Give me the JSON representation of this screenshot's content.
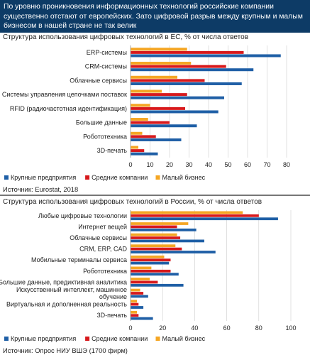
{
  "headline": "По уровню проникновения информационных технологий российские компании существенно отстают от европейских. Зато цифровой разрыв между крупным и малым бизнесом в нашей стране не так велик",
  "colors": {
    "large": "#1f5fa6",
    "medium": "#d7191c",
    "small": "#f5a623",
    "headline_bg": "#0d3b66",
    "grid": "#cccccc"
  },
  "chart_data": [
    {
      "type": "bar",
      "orientation": "horizontal",
      "title": "Структура использования цифровых технологий в ЕС, % от числа ответов",
      "categories": [
        "ERP-системы",
        "CRM-системы",
        "Облачные сервисы",
        "Системы управления цепочками поставок",
        "RFID (радиочастотная идентификация)",
        "Большие данные",
        "Робототехника",
        "3D-печать"
      ],
      "series": [
        {
          "name": "Крупные предприятия",
          "color": "#1f5fa6",
          "values": [
            77,
            63,
            57,
            48,
            45,
            34,
            26,
            14
          ]
        },
        {
          "name": "Средние компании",
          "color": "#d7191c",
          "values": [
            58,
            49,
            38,
            29,
            28,
            20,
            13,
            7
          ]
        },
        {
          "name": "Малый бизнес",
          "color": "#f5a623",
          "values": [
            29,
            31,
            24,
            16,
            10,
            9,
            6,
            4
          ]
        }
      ],
      "xlim": [
        0,
        80
      ],
      "ticks": [
        "0",
        "10",
        "20",
        "30",
        "40",
        "50",
        "60",
        "70",
        "80"
      ],
      "grid": true,
      "legend_position": "bottom",
      "source": "Источник: Eurostat, 2018"
    },
    {
      "type": "bar",
      "orientation": "horizontal",
      "title": "Структура использования цифровых технологий в России, % от числа ответов",
      "categories": [
        "Любые цифровые технологии",
        "Интернет вещей",
        "Облачные сервисы",
        "CRM, ERP, CAD",
        "Мобильные терминалы сервиса",
        "Робототехника",
        "Большие данные, предиктивная аналитика",
        "Искусственный интеллект, машинное обучение",
        "Виртуальная и дополненная реальность",
        "3D-печать"
      ],
      "series": [
        {
          "name": "Крупные предприятия",
          "color": "#1f5fa6",
          "values": [
            92,
            41,
            46,
            53,
            24,
            30,
            33,
            11,
            8,
            14
          ]
        },
        {
          "name": "Средние компании",
          "color": "#d7191c",
          "values": [
            80,
            29,
            31,
            32,
            25,
            25,
            17,
            8,
            5,
            5
          ]
        },
        {
          "name": "Малый бизнес",
          "color": "#f5a623",
          "values": [
            70,
            36,
            29,
            28,
            21,
            13,
            12,
            6,
            4,
            4
          ]
        }
      ],
      "xlim": [
        0,
        100
      ],
      "ticks": [
        "0",
        "20",
        "40",
        "60",
        "80",
        "100"
      ],
      "grid": true,
      "legend_position": "bottom",
      "source": "Источник: Опрос НИУ ВШЭ (1700 фирм)"
    }
  ]
}
